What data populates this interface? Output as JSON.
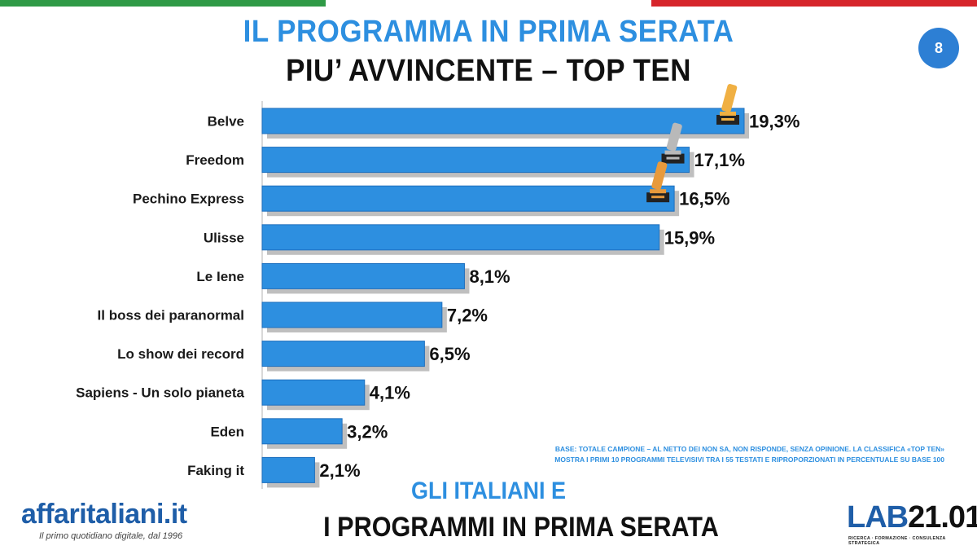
{
  "header": {
    "title_line1": "IL PROGRAMMA IN PRIMA SERATA",
    "title_line2": "PIU’ AVVINCENTE – TOP TEN",
    "page_badge": "8"
  },
  "chart_data": {
    "type": "bar",
    "orientation": "horizontal",
    "categories": [
      "Belve",
      "Freedom",
      "Pechino Express",
      "Ulisse",
      "Le Iene",
      "Il boss dei paranormal",
      "Lo show dei record",
      "Sapiens - Un solo pianeta",
      "Eden",
      "Faking it"
    ],
    "values": [
      19.3,
      17.1,
      16.5,
      15.9,
      8.1,
      7.2,
      6.5,
      4.1,
      3.2,
      2.1
    ],
    "value_labels": [
      "19,3%",
      "17,1%",
      "16,5%",
      "15,9%",
      "8,1%",
      "7,2%",
      "6,5%",
      "4,1%",
      "3,2%",
      "2,1%"
    ],
    "xlim": [
      0,
      20
    ],
    "grid": false,
    "legend": "none",
    "colors": {
      "bar": "#2d8fe0",
      "bar_border": "#1f6fbd",
      "shadow": "#bfbfbf"
    },
    "trophies": [
      {
        "category": "Belve",
        "color": "#f0b043",
        "icon": "trophy-gold-icon"
      },
      {
        "category": "Freedom",
        "color": "#b9b9b9",
        "icon": "trophy-silver-icon"
      },
      {
        "category": "Pechino Express",
        "color": "#e89a3c",
        "icon": "trophy-bronze-icon"
      }
    ]
  },
  "footnote": {
    "line1": "BASE: TOTALE CAMPIONE – AL NETTO DEI NON SA, NON RISPONDE, SENZA OPINIONE. LA CLASSIFICA «TOP TEN»",
    "line2": "MOSTRA I PRIMI 10 PROGRAMMI TELEVISIVI TRA I 55 TESTATI E RIPROPORZIONATI IN PERCENTUALE SU BASE 100"
  },
  "footer": {
    "title_line1": "GLI ITALIANI E",
    "title_line2": "I PROGRAMMI IN PRIMA SERATA",
    "logo_left": "affaritaliani.it",
    "logo_left_tagline": "Il primo quotidiano digitale, dal 1996",
    "logo_right_lab": "LAB",
    "logo_right_num": "21.01",
    "logo_right_tagline": "RICERCA · FORMAZIONE · CONSULENZA STRATEGICA"
  }
}
